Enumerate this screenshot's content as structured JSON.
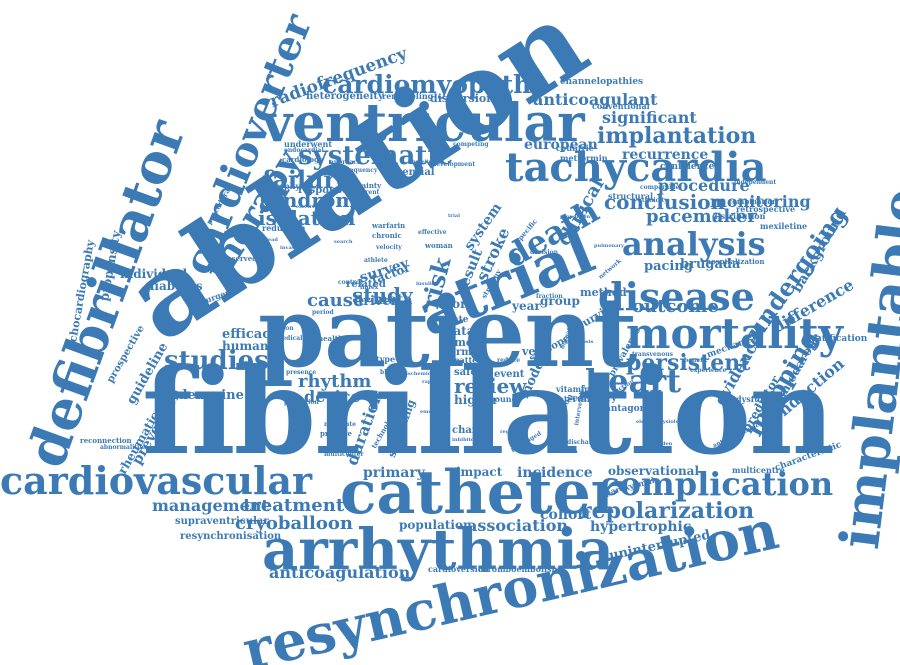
{
  "words": {
    "fibrillation": "fibrillation",
    "patient": "patient",
    "ablation": "ablation",
    "catheter": "catheter",
    "arrhythmia": "arrhythmia",
    "resynchronization": "resynchronization",
    "implantable": "implantable",
    "defibrillator": "defibrillator",
    "cardioverter": "cardioverter",
    "ventricular": "ventricular",
    "atrial": "atrial",
    "tachycardia": "tachycardia",
    "mortality": "mortality",
    "disease": "disease",
    "cardiovascular": "cardiovascular",
    "complication": "complication",
    "heart": "heart",
    "analysis": "analysis",
    "cardiomyopathy": "cardiomyopathy",
    "therapy": "therapy",
    "systematic": "systematic",
    "failure": "failure",
    "death": "death",
    "repolarization": "repolarization",
    "implantation": "implantation",
    "studies": "studies",
    "persistent": "persistent",
    "undergoing": "undergoing",
    "mapping": "mapping",
    "radiofrequency": "radiofrequency",
    "anticoagulant": "anticoagulant",
    "significant": "significant",
    "conclusion": "conclusion",
    "monitoring": "monitoring",
    "pacemaker": "pacemaker",
    "procedure": "procedure",
    "recurrence": "recurrence",
    "syndrome": "syndrome",
    "isolation": "isolation",
    "study": "study",
    "outcome": "outcome",
    "review": "review",
    "rhythm": "rhythm",
    "device": "device",
    "treatment": "treatment",
    "management": "management",
    "cryoballoon": "cryoballoon",
    "anticoagulation": "anticoagulation",
    "association": "association",
    "population": "population",
    "cohort": "cohort",
    "primary": "primary",
    "incidence": "incidence",
    "observational": "observational",
    "hypertrophic": "hypertrophic",
    "uninterrupted": "uninterrupted",
    "prevention": "prevention",
    "guideline": "guideline",
    "adenosine": "adenosine",
    "cause": "cause",
    "risk": "risk",
    "clinical": "clinical",
    "stroke": "stroke",
    "result": "result",
    "system": "system",
    "survey": "survey",
    "european": "european",
    "evidence": "evidence",
    "conduction": "conduction",
    "difference": "difference",
    "background": "background",
    "predictor": "predictor",
    "amiodarone": "amiodarone",
    "brugada": "brugada",
    "pacing": "pacing",
    "efficacy": "efficacy",
    "human": "human",
    "individual": "individual",
    "diabetes": "diabetes",
    "propensity": "propensity",
    "echocardiography": "echocardiography",
    "rheumatic": "rheumatic",
    "prospective": "prospective",
    "supraventricular": "supraventricular",
    "resynchronisation": "resynchronisation",
    "heterogeneity": "heterogeneity",
    "remodeling": "remodeling",
    "dispersion": "dispersion",
    "channelopathies": "channelopathies",
    "conventional": "conventional",
    "meta": "meta",
    "factor": "factor",
    "score": "score",
    "group": "group",
    "method": "method",
    "year": "year",
    "data": "data",
    "time": "time",
    "term": "term",
    "rate": "rate",
    "vein": "vein",
    "safety": "safety",
    "event": "event",
    "higher": "higher",
    "model": "model",
    "screening": "screening",
    "impact": "impact",
    "change": "change",
    "duration": "duration",
    "driver": "driver",
    "related": "related",
    "potential": "potential",
    "response": "response",
    "stratification": "stratification",
    "multicentre": "multicentre",
    "cardioversion": "cardioversion",
    "thromboembolism": "thromboembolism",
    "paroxysmal": "paroxysmal",
    "coronary": "coronary",
    "interval": "interval",
    "vitamin": "vitamin",
    "antagonist": "antagonist",
    "quality": "quality",
    "survival": "survival",
    "syncope": "syncope",
    "structural": "structural",
    "metformin": "metformin",
    "countries": "countrie",
    "confidence": "confidence",
    "distribution": "distribution",
    "mexiletine": "mexiletine",
    "retrospective": "retrospective",
    "combination": "combination",
    "hospitalization": "hospitalization",
    "dysfunction": "dysfunction",
    "characteristic": "characteristic",
    "prevalence": "prevalence",
    "mechanism": "mechanism",
    "underwent": "underwent",
    "cardiology": "cardiology",
    "warfarin": "warfarin",
    "chronic": "chronic",
    "woman": "woman",
    "certainty": "certainty",
    "different": "different",
    "control": "control",
    "index": "index",
    "type": "type",
    "health": "health",
    "surgery": "surgery",
    "observed": "observed",
    "reduction": "reduction",
    "dystrophy": "dystrophy",
    "procedural": "procedural",
    "reconnection": "reconnection",
    "abnormalities": "abnormalities",
    "young": "young",
    "benefit": "benefit",
    "experience": "experience",
    "independent": "independent",
    "fraction": "fraction",
    "effective": "effective",
    "specific": "specific",
    "strategy": "strategy",
    "practice": "practice",
    "moderate": "moderate",
    "technology": "technology",
    "multicenter": "multicenter",
    "pattern": "pattern",
    "reduce": "reduce",
    "competing": "competing",
    "development": "development",
    "frequency": "frequency",
    "approach": "approach",
    "endocardial": "endocardial",
    "decision": "decision",
    "athlete": "athlete",
    "period": "period",
    "presence": "presence",
    "prediction": "prediction",
    "comparable": "comparable",
    "transvenous": "transvenous",
    "antiarrhythmic": "antiarrhythmic",
    "discharge": "discharge",
    "introduction": "introduction",
    "ethnicity": "ethnicity",
    "network": "network",
    "option": "option",
    "medical": "medical",
    "velocity": "velocity",
    "electrical": "electrical",
    "baseline": "baseline",
    "function": "function",
    "prognosis": "prognosis",
    "contact": "contact",
    "novel": "novel",
    "emergency": "emergency",
    "ischemic": "ischemic",
    "rapid": "rapid",
    "inhibitor": "inhibitor",
    "blood": "blood",
    "oral": "oral",
    "cost": "cost",
    "insulin": "insulin",
    "proportion": "proportion",
    "pulmonary": "pulmonary",
    "trial": "trial",
    "genetic": "genetic",
    "search": "search",
    "lead": "lead",
    "invasive": "invasive",
    "electrophysiology": "electrophysiology",
    "mutation": "mutation",
    "sudden": "sudden",
    "outpatient": "outpatient",
    "registry": "registry",
    "prolonged": "prolonged",
    "intervention": "intervention"
  }
}
